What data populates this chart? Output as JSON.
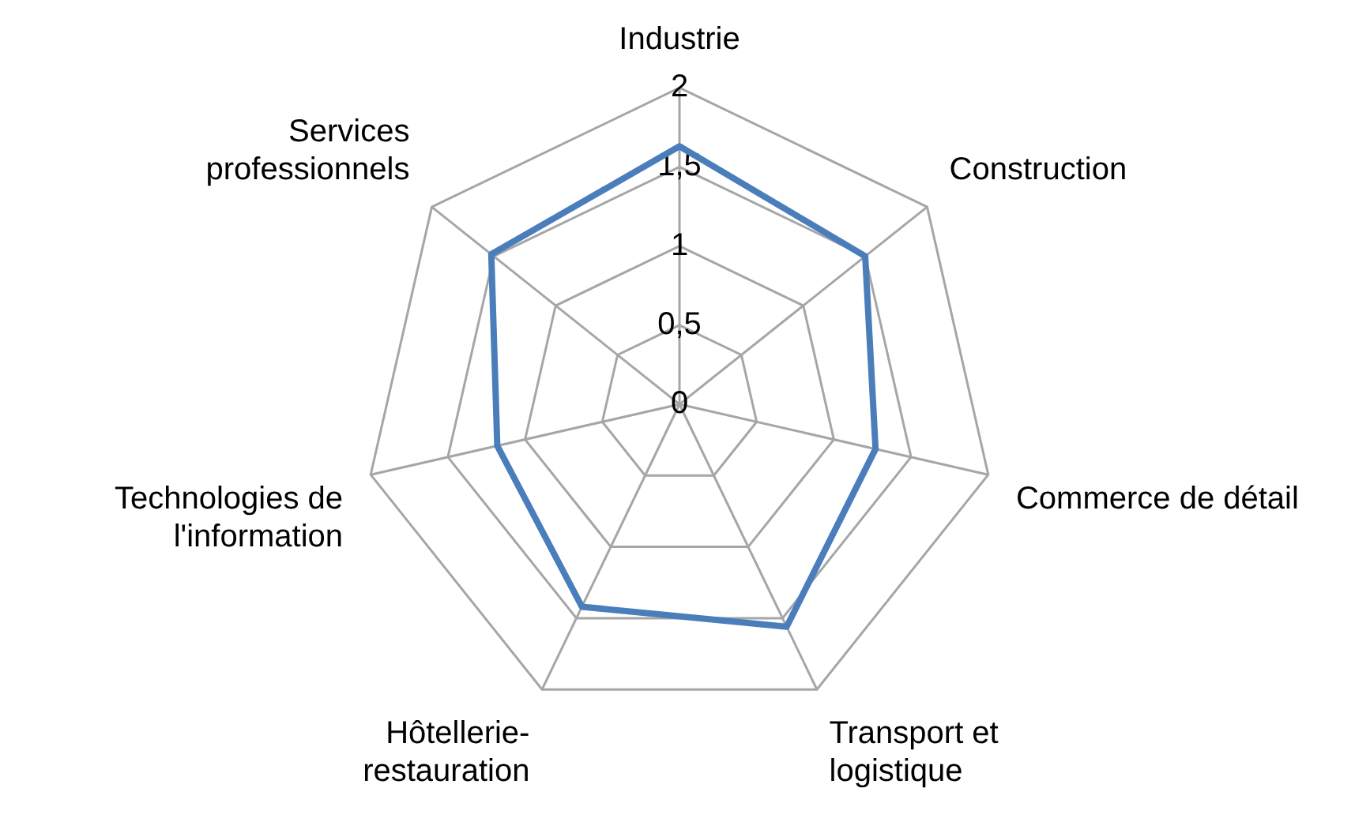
{
  "chart_data": {
    "type": "radar",
    "categories": [
      "Industrie",
      "Construction",
      "Commerce de détail",
      "Transport et logistique",
      "Hôtellerie-restauration",
      "Technologies de l'information",
      "Services professionnels"
    ],
    "series": [
      {
        "color": "#4a7ebb",
        "values": [
          1.63,
          1.5,
          1.27,
          1.56,
          1.42,
          1.18,
          1.52
        ]
      }
    ],
    "ylim": [
      0,
      2
    ],
    "yticks": [
      0,
      {
        "value": 0.5,
        "label": "0,5"
      },
      1,
      {
        "value": 1.5,
        "label": "1,5"
      },
      2
    ],
    "grid": true,
    "marker": "none"
  }
}
